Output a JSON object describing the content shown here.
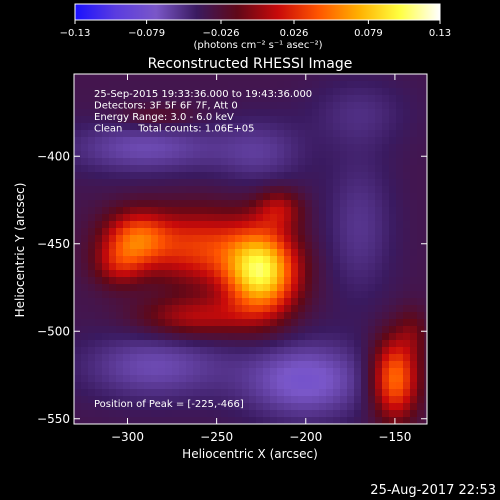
{
  "chart_data": {
    "type": "heatmap",
    "title": "Reconstructed RHESSI Image",
    "xlabel": "Heliocentric X (arcsec)",
    "ylabel": "Heliocentric Y (arcsec)",
    "xlim": [
      -330,
      -132
    ],
    "ylim": [
      -553,
      -353
    ],
    "x_ticks": [
      -300,
      -250,
      -200,
      -150
    ],
    "x_tick_labels": [
      "−300",
      "−250",
      "−200",
      "−150"
    ],
    "y_ticks": [
      -400,
      -450,
      -500,
      -550
    ],
    "y_tick_labels": [
      "−400",
      "−450",
      "−500",
      "−550"
    ],
    "colorbar": {
      "range": [
        -0.13,
        0.13
      ],
      "ticks": [
        -0.13,
        -0.079,
        -0.026,
        0.026,
        0.079,
        0.13
      ],
      "tick_labels": [
        "−0.13",
        "−0.079",
        "−0.026",
        "0.026",
        "0.079",
        "0.13"
      ],
      "units": "(photons cm⁻² s⁻¹ asec⁻²)",
      "colors": [
        "#1a10ff",
        "#5a3ce0",
        "#7a57c8",
        "#3a1a60",
        "#600818",
        "#c80a0a",
        "#ff5500",
        "#ffb000",
        "#ffff40",
        "#ffffff"
      ]
    },
    "info_lines": [
      "25-Sep-2015 19:33:36.000 to 19:43:36.000",
      "Detectors: 3F 5F 6F 7F, Att 0",
      "Energy Range: 3.0 - 6.0 keV",
      "Clean     Total counts: 1.06E+05"
    ],
    "peak_label": "Position of Peak = [-225,-466]",
    "peak": [
      -225,
      -466
    ],
    "blobs": [
      {
        "x": -225,
        "y": -466,
        "sx": 14,
        "sy": 17,
        "a": 0.135
      },
      {
        "x": -260,
        "y": -452,
        "sx": 20,
        "sy": 15,
        "a": 0.065
      },
      {
        "x": -295,
        "y": -447,
        "sx": 13,
        "sy": 11,
        "a": 0.075
      },
      {
        "x": -305,
        "y": -462,
        "sx": 10,
        "sy": 9,
        "a": 0.04
      },
      {
        "x": -262,
        "y": -492,
        "sx": 22,
        "sy": 8,
        "a": 0.045
      },
      {
        "x": -215,
        "y": -430,
        "sx": 9,
        "sy": 8,
        "a": 0.04
      },
      {
        "x": -283,
        "y": -378,
        "sx": 16,
        "sy": 5,
        "a": 0.02
      },
      {
        "x": -150,
        "y": -527,
        "sx": 9,
        "sy": 16,
        "a": 0.09
      },
      {
        "x": -140,
        "y": -500,
        "sx": 6,
        "sy": 10,
        "a": 0.02
      },
      {
        "x": -285,
        "y": -520,
        "sx": 30,
        "sy": 14,
        "a": -0.03
      },
      {
        "x": -200,
        "y": -528,
        "sx": 25,
        "sy": 16,
        "a": -0.04
      },
      {
        "x": -290,
        "y": -395,
        "sx": 32,
        "sy": 11,
        "a": -0.03
      },
      {
        "x": -225,
        "y": -398,
        "sx": 18,
        "sy": 14,
        "a": -0.02
      },
      {
        "x": -170,
        "y": -440,
        "sx": 14,
        "sy": 30,
        "a": -0.02
      },
      {
        "x": -170,
        "y": -375,
        "sx": 20,
        "sy": 14,
        "a": -0.015
      }
    ],
    "grid": false
  },
  "timestamp": "25-Aug-2017 22:53"
}
